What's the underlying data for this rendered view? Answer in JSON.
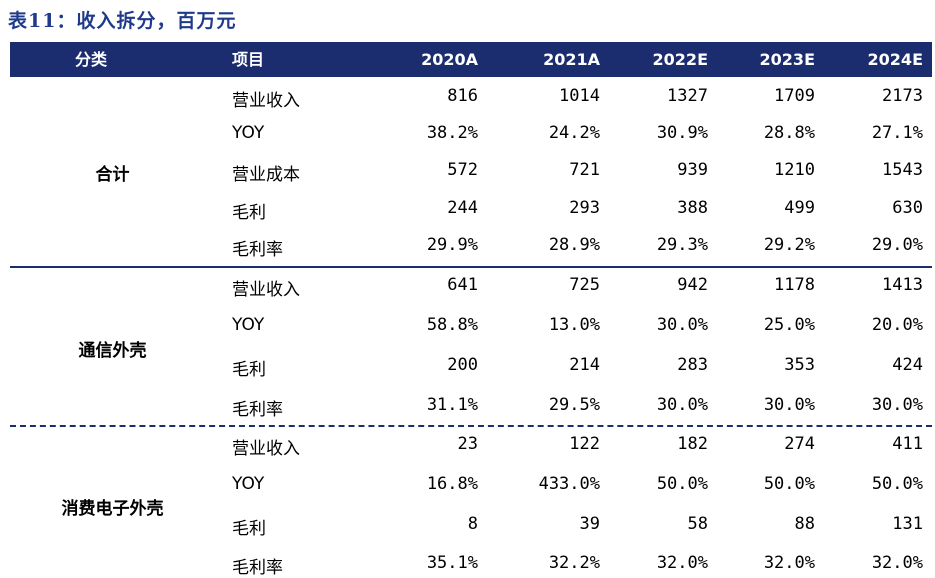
{
  "title": "表11：收入拆分，百万元",
  "headers": {
    "category": "分类",
    "item": "项目",
    "years": [
      "2020A",
      "2021A",
      "2022E",
      "2023E",
      "2024E"
    ]
  },
  "groups": [
    {
      "name": "合计",
      "rows": [
        {
          "item": "营业收入",
          "values": [
            "816",
            "1014",
            "1327",
            "1709",
            "2173"
          ]
        },
        {
          "item": "YOY",
          "values": [
            "38.2%",
            "24.2%",
            "30.9%",
            "28.8%",
            "27.1%"
          ]
        },
        {
          "item": "营业成本",
          "values": [
            "572",
            "721",
            "939",
            "1210",
            "1543"
          ]
        },
        {
          "item": "毛利",
          "values": [
            "244",
            "293",
            "388",
            "499",
            "630"
          ]
        },
        {
          "item": "毛利率",
          "values": [
            "29.9%",
            "28.9%",
            "29.3%",
            "29.2%",
            "29.0%"
          ]
        }
      ]
    },
    {
      "name": "通信外壳",
      "rows": [
        {
          "item": "营业收入",
          "values": [
            "641",
            "725",
            "942",
            "1178",
            "1413"
          ]
        },
        {
          "item": "YOY",
          "values": [
            "58.8%",
            "13.0%",
            "30.0%",
            "25.0%",
            "20.0%"
          ]
        },
        {
          "item": "毛利",
          "values": [
            "200",
            "214",
            "283",
            "353",
            "424"
          ]
        },
        {
          "item": "毛利率",
          "values": [
            "31.1%",
            "29.5%",
            "30.0%",
            "30.0%",
            "30.0%"
          ]
        }
      ]
    },
    {
      "name": "消费电子外壳",
      "rows": [
        {
          "item": "营业收入",
          "values": [
            "23",
            "122",
            "182",
            "274",
            "411"
          ]
        },
        {
          "item": "YOY",
          "values": [
            "16.8%",
            "433.0%",
            "50.0%",
            "50.0%",
            "50.0%"
          ]
        },
        {
          "item": "毛利",
          "values": [
            "8",
            "39",
            "58",
            "88",
            "131"
          ]
        },
        {
          "item": "毛利率",
          "values": [
            "35.1%",
            "32.2%",
            "32.0%",
            "32.0%",
            "32.0%"
          ]
        }
      ]
    }
  ]
}
